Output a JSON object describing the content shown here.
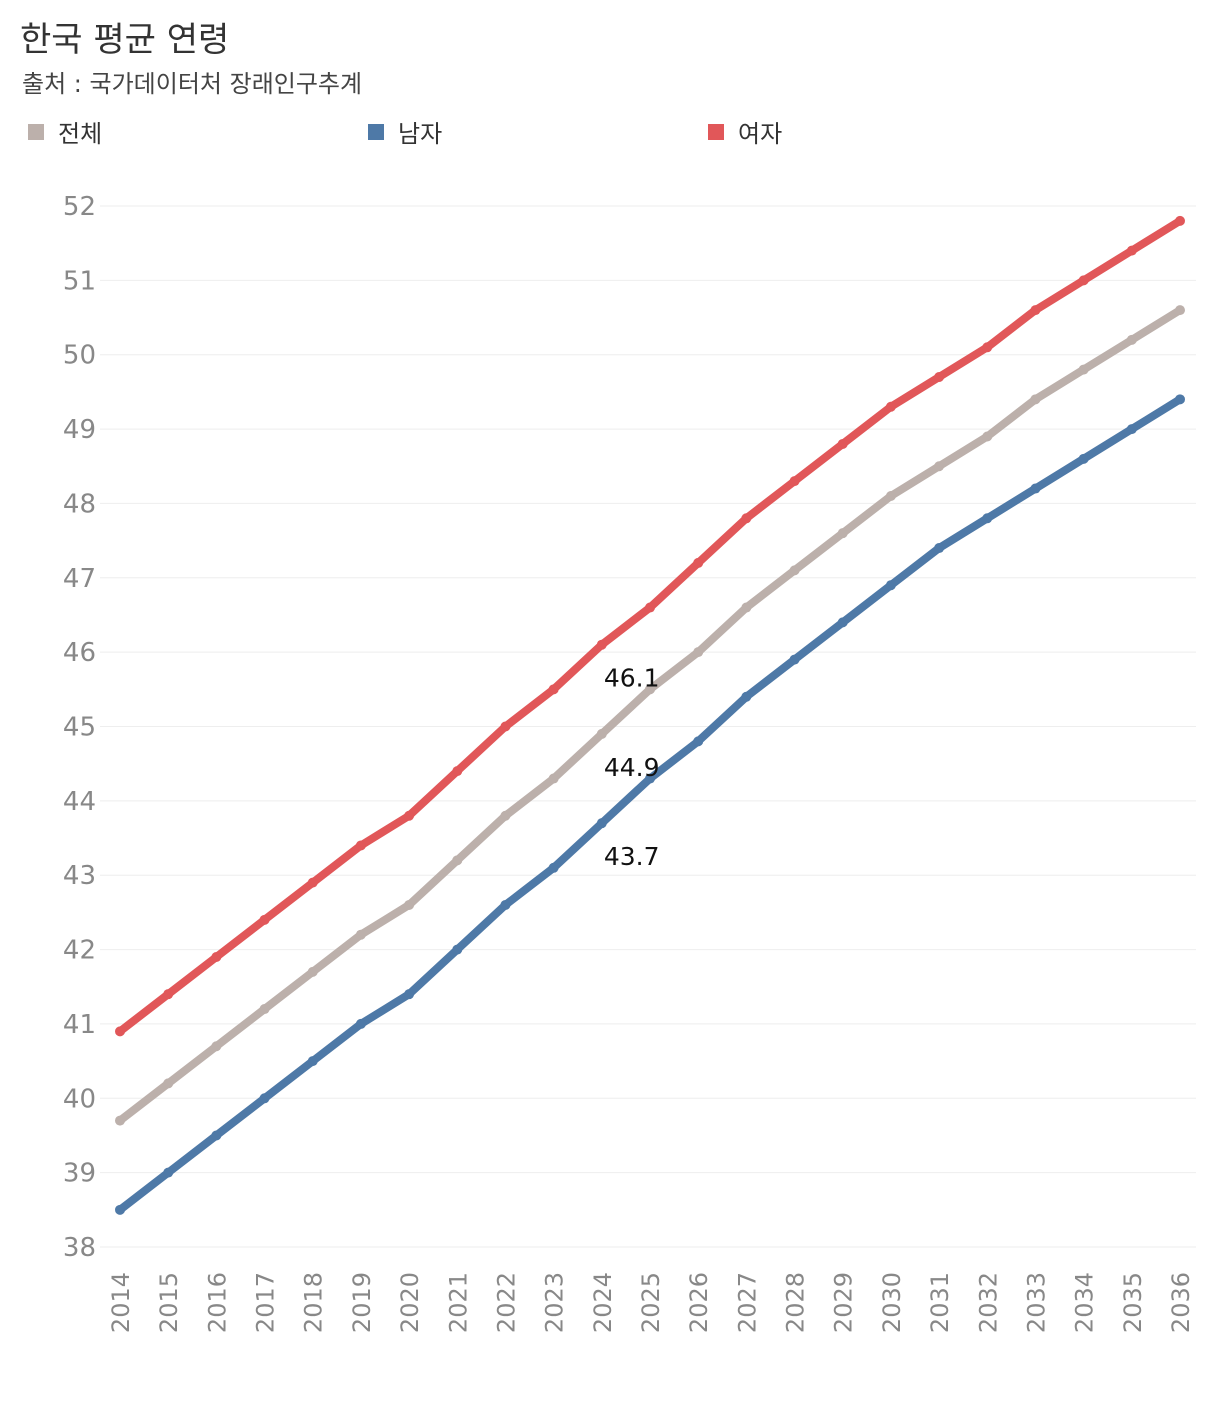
{
  "title": "한국 평균 연령",
  "subtitle": "출처 : 국가데이터처 장래인구추계",
  "colors": {
    "total": "#bcb0ab",
    "male": "#4e79a7",
    "female": "#e15759"
  },
  "chart_data": {
    "type": "line",
    "title": "한국 평균 연령",
    "xlabel": "",
    "ylabel": "",
    "ylim": [
      38,
      52
    ],
    "grid": true,
    "legend": "top",
    "x": [
      "2014",
      "2015",
      "2016",
      "2017",
      "2018",
      "2019",
      "2020",
      "2021",
      "2022",
      "2023",
      "2024",
      "2025",
      "2026",
      "2027",
      "2028",
      "2029",
      "2030",
      "2031",
      "2032",
      "2033",
      "2034",
      "2035",
      "2036"
    ],
    "y_ticks": [
      "52",
      "51",
      "50",
      "49",
      "48",
      "47",
      "46",
      "45",
      "44",
      "43",
      "42",
      "41",
      "40",
      "39",
      "38"
    ],
    "series": [
      {
        "key": "total",
        "name": "전체",
        "values": [
          39.7,
          40.2,
          40.7,
          41.2,
          41.7,
          42.2,
          42.6,
          43.2,
          43.8,
          44.3,
          44.9,
          45.5,
          46.0,
          46.6,
          47.1,
          47.6,
          48.1,
          48.5,
          48.9,
          49.4,
          49.8,
          50.2,
          50.6
        ]
      },
      {
        "key": "male",
        "name": "남자",
        "values": [
          38.5,
          39.0,
          39.5,
          40.0,
          40.5,
          41.0,
          41.4,
          42.0,
          42.6,
          43.1,
          43.7,
          44.3,
          44.8,
          45.4,
          45.9,
          46.4,
          46.9,
          47.4,
          47.8,
          48.2,
          48.6,
          49.0,
          49.4
        ]
      },
      {
        "key": "female",
        "name": "여자",
        "values": [
          40.9,
          41.4,
          41.9,
          42.4,
          42.9,
          43.4,
          43.8,
          44.4,
          45.0,
          45.5,
          46.1,
          46.6,
          47.2,
          47.8,
          48.3,
          48.8,
          49.3,
          49.7,
          50.1,
          50.6,
          51.0,
          51.4,
          51.8
        ]
      }
    ],
    "annotations": [
      {
        "series": "female",
        "x": "2024",
        "label": "46.1"
      },
      {
        "series": "total",
        "x": "2024",
        "label": "44.9"
      },
      {
        "series": "male",
        "x": "2024",
        "label": "43.7"
      }
    ]
  }
}
